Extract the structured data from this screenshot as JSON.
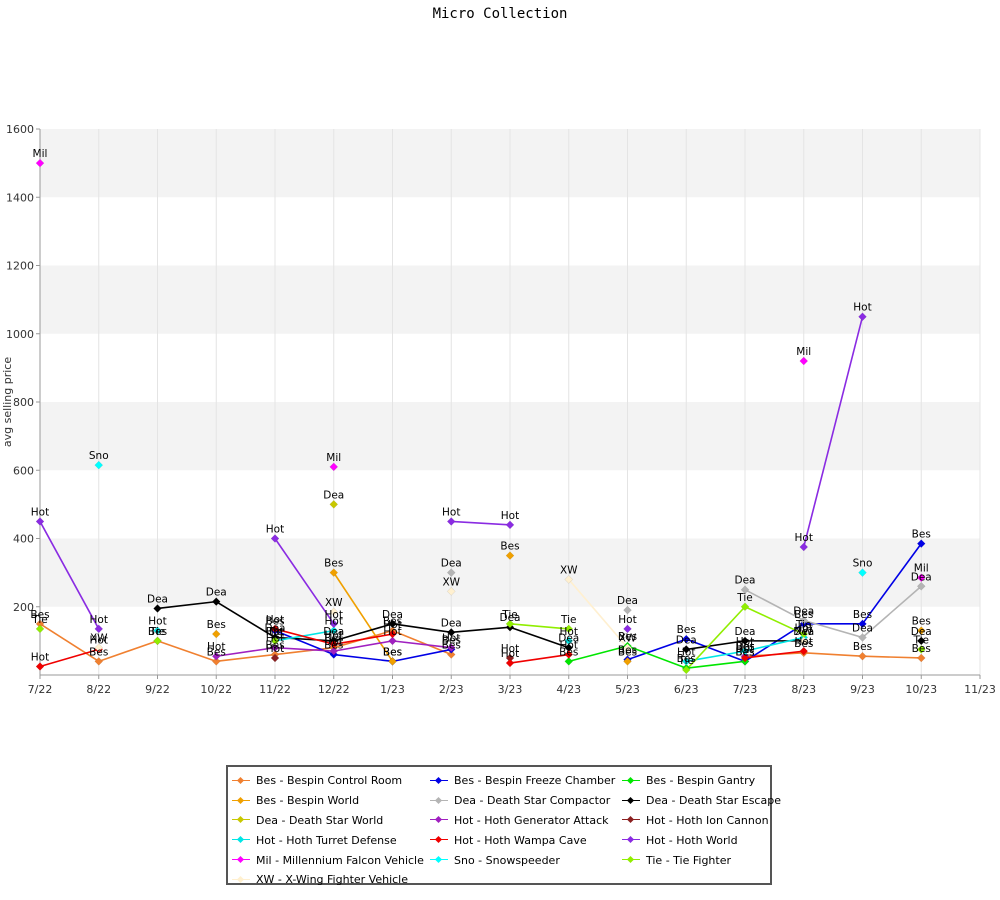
{
  "chart_data": {
    "type": "line",
    "title": "Micro Collection",
    "ylabel": "avg selling price",
    "xlabel": "",
    "ylim": [
      0,
      1600
    ],
    "yticks": [
      200,
      400,
      600,
      800,
      1000,
      1200,
      1400,
      1600
    ],
    "x": [
      "7/22",
      "8/22",
      "9/22",
      "10/22",
      "11/22",
      "12/22",
      "1/23",
      "2/23",
      "3/23",
      "4/23",
      "5/23",
      "6/23",
      "7/23",
      "8/23",
      "9/23",
      "10/23",
      "11/23"
    ],
    "grid": "horizontal bands",
    "legend_position": "bottom",
    "series": [
      {
        "name": "Bes - Bespin Control Room",
        "short": "Bes",
        "color": "#f08030",
        "values": [
          150,
          40,
          100,
          40,
          60,
          80,
          130,
          60,
          null,
          null,
          null,
          null,
          55,
          65,
          55,
          50,
          null
        ]
      },
      {
        "name": "Bes - Bespin Freeze Chamber",
        "short": "Bes",
        "color": "#0000e6",
        "values": [
          null,
          null,
          null,
          null,
          130,
          60,
          40,
          75,
          null,
          null,
          45,
          105,
          40,
          150,
          150,
          385,
          null
        ]
      },
      {
        "name": "Bes - Bespin Gantry",
        "short": "Bes",
        "color": "#00e600",
        "values": [
          null,
          null,
          null,
          null,
          null,
          null,
          null,
          null,
          null,
          40,
          85,
          20,
          40,
          null,
          null,
          null,
          null
        ]
      },
      {
        "name": "Bes - Bespin World",
        "short": "Bes",
        "color": "#f0a000",
        "values": [
          null,
          null,
          null,
          120,
          null,
          300,
          40,
          null,
          350,
          null,
          40,
          null,
          null,
          null,
          null,
          130,
          null
        ]
      },
      {
        "name": "Dea - Death Star Compactor",
        "short": "Dea",
        "color": "#b4b4b4",
        "values": [
          null,
          null,
          null,
          null,
          null,
          null,
          null,
          300,
          null,
          null,
          190,
          null,
          250,
          160,
          110,
          260,
          null
        ]
      },
      {
        "name": "Dea - Death Star Escape",
        "short": "Dea",
        "color": "#000000",
        "values": [
          null,
          null,
          195,
          215,
          110,
          100,
          150,
          125,
          140,
          80,
          null,
          75,
          100,
          100,
          null,
          100,
          null
        ]
      },
      {
        "name": "Dea - Death Star World",
        "short": "Dea",
        "color": "#c8c800",
        "values": [
          null,
          null,
          null,
          null,
          null,
          500,
          null,
          null,
          null,
          null,
          null,
          null,
          null,
          null,
          null,
          null,
          null
        ]
      },
      {
        "name": "Hot - Hoth Generator Attack",
        "short": "Hot",
        "color": "#a020c0",
        "values": [
          null,
          null,
          null,
          55,
          80,
          70,
          100,
          80,
          null,
          null,
          null,
          null,
          55,
          null,
          null,
          null,
          null
        ]
      },
      {
        "name": "Hot - Hoth Ion Cannon",
        "short": "Hot",
        "color": "#8b2020",
        "values": [
          null,
          null,
          null,
          null,
          50,
          null,
          null,
          null,
          50,
          null,
          null,
          null,
          null,
          null,
          null,
          null,
          null
        ]
      },
      {
        "name": "Hot - Hoth Turret Defense",
        "short": "Hot",
        "color": "#00e6e6",
        "values": [
          null,
          null,
          130,
          null,
          100,
          130,
          null,
          null,
          null,
          100,
          null,
          40,
          70,
          110,
          null,
          null,
          null
        ]
      },
      {
        "name": "Hot - Hoth Wampa Cave",
        "short": "Hot",
        "color": "#f00000",
        "values": [
          25,
          75,
          null,
          null,
          135,
          90,
          120,
          null,
          35,
          60,
          null,
          null,
          50,
          70,
          null,
          null,
          null
        ]
      },
      {
        "name": "Hot - Hoth World",
        "short": "Hot",
        "color": "#8a2be2",
        "values": [
          450,
          135,
          null,
          null,
          400,
          150,
          null,
          450,
          440,
          null,
          135,
          null,
          null,
          375,
          1050,
          null,
          null
        ]
      },
      {
        "name": "Mil - Millennium Falcon Vehicle",
        "short": "Mil",
        "color": "#ff00ff",
        "values": [
          1500,
          null,
          null,
          null,
          null,
          610,
          null,
          null,
          null,
          null,
          null,
          null,
          null,
          920,
          null,
          285,
          null
        ]
      },
      {
        "name": "Sno - Snowspeeder",
        "short": "Sno",
        "color": "#00ffff",
        "values": [
          null,
          615,
          null,
          null,
          null,
          null,
          null,
          null,
          null,
          null,
          null,
          null,
          null,
          null,
          300,
          null,
          null
        ]
      },
      {
        "name": "Tie - Tie Fighter",
        "short": "Tie",
        "color": "#90ee00",
        "values": [
          135,
          null,
          100,
          null,
          100,
          null,
          null,
          null,
          150,
          135,
          null,
          15,
          200,
          120,
          null,
          75,
          null
        ]
      },
      {
        "name": "XW - X-Wing Fighter Vehicle",
        "short": "XW",
        "color": "#fff0d0",
        "values": [
          null,
          80,
          null,
          null,
          null,
          185,
          null,
          245,
          null,
          280,
          80,
          null,
          null,
          100,
          null,
          null,
          null
        ]
      }
    ]
  }
}
